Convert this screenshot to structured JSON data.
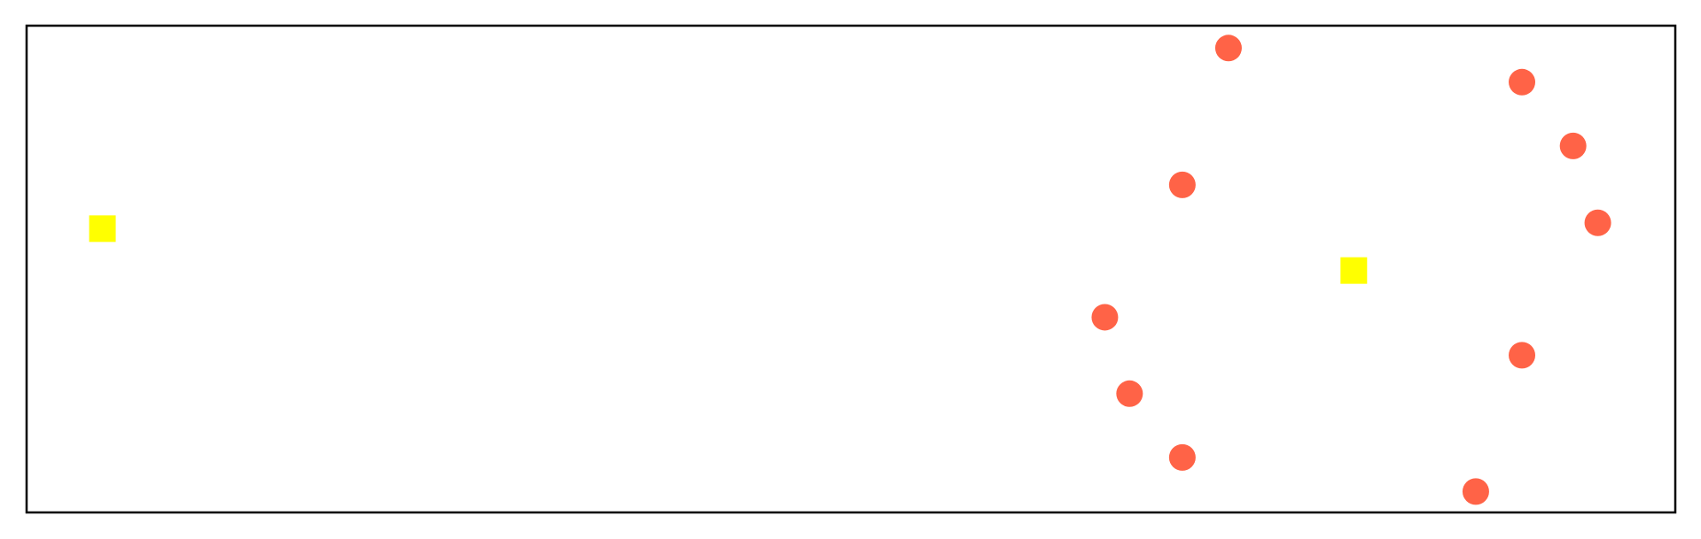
{
  "chart_data": {
    "type": "scatter",
    "title": "",
    "xlabel": "",
    "ylabel": "",
    "xlim": [
      0,
      1
    ],
    "ylim": [
      0,
      1
    ],
    "grid": false,
    "axis_ticks": false,
    "series": [
      {
        "marker": "square",
        "color": "#ffff00",
        "points": [
          {
            "x": 0.046,
            "y": 0.583
          },
          {
            "x": 0.805,
            "y": 0.497
          }
        ]
      },
      {
        "marker": "circle",
        "color": "#ff6347",
        "points": [
          {
            "x": 0.729,
            "y": 0.954
          },
          {
            "x": 0.907,
            "y": 0.884
          },
          {
            "x": 0.938,
            "y": 0.753
          },
          {
            "x": 0.701,
            "y": 0.673
          },
          {
            "x": 0.953,
            "y": 0.595
          },
          {
            "x": 0.654,
            "y": 0.401
          },
          {
            "x": 0.907,
            "y": 0.323
          },
          {
            "x": 0.669,
            "y": 0.244
          },
          {
            "x": 0.701,
            "y": 0.113
          },
          {
            "x": 0.879,
            "y": 0.043
          }
        ]
      }
    ]
  }
}
